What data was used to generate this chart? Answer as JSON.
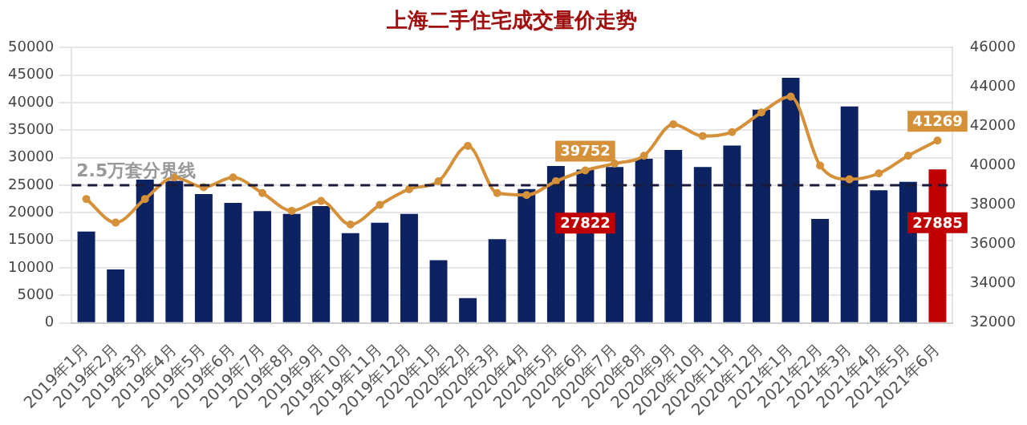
{
  "chart_data": {
    "type": "bar",
    "title": "上海二手住宅成交量价走势",
    "categories": [
      "2019年1月",
      "2019年2月",
      "2019年3月",
      "2019年4月",
      "2019年5月",
      "2019年6月",
      "2019年7月",
      "2019年8月",
      "2019年9月",
      "2019年10月",
      "2019年11月",
      "2019年12月",
      "2020年1月",
      "2020年2月",
      "2020年3月",
      "2020年4月",
      "2020年5月",
      "2020年6月",
      "2020年7月",
      "2020年8月",
      "2020年9月",
      "2020年10月",
      "2020年11月",
      "2020年12月",
      "2021年1月",
      "2021年2月",
      "2021年3月",
      "2021年4月",
      "2021年5月",
      "2021年6月"
    ],
    "series": [
      {
        "colors": [
          "#0d2260",
          "#0d2260",
          "#0d2260",
          "#0d2260",
          "#0d2260",
          "#0d2260",
          "#0d2260",
          "#0d2260",
          "#0d2260",
          "#0d2260",
          "#0d2260",
          "#0d2260",
          "#0d2260",
          "#0d2260",
          "#0d2260",
          "#0d2260",
          "#0d2260",
          "#0d2260",
          "#0d2260",
          "#0d2260",
          "#0d2260",
          "#0d2260",
          "#0d2260",
          "#0d2260",
          "#0d2260",
          "#0d2260",
          "#0d2260",
          "#0d2260",
          "#0d2260",
          "#c00000"
        ],
        "values": [
          16600,
          9700,
          26000,
          25800,
          23400,
          21800,
          20300,
          19800,
          21200,
          16300,
          18200,
          19800,
          11400,
          4500,
          15200,
          24300,
          28500,
          27822,
          28300,
          29800,
          31400,
          28300,
          32200,
          38700,
          44500,
          18900,
          39300,
          24100,
          25600,
          27885
        ],
        "value_labels": [
          null,
          null,
          null,
          null,
          null,
          null,
          null,
          null,
          null,
          null,
          null,
          null,
          null,
          null,
          null,
          null,
          null,
          "27822",
          null,
          null,
          null,
          null,
          null,
          null,
          null,
          null,
          null,
          null,
          null,
          "27885"
        ]
      },
      {
        "type": "line",
        "axis": "y2",
        "color": "#d4913a",
        "values": [
          38300,
          37100,
          38300,
          39400,
          38900,
          39400,
          38600,
          37700,
          38200,
          37000,
          38000,
          38800,
          39200,
          41000,
          38600,
          38500,
          39200,
          39752,
          40100,
          40500,
          42100,
          41500,
          41700,
          42700,
          43500,
          40000,
          39300,
          39600,
          40500,
          41269
        ],
        "value_labels": [
          null,
          null,
          null,
          null,
          null,
          null,
          null,
          null,
          null,
          null,
          null,
          null,
          null,
          null,
          null,
          null,
          null,
          "39752",
          null,
          null,
          null,
          null,
          null,
          null,
          null,
          null,
          null,
          null,
          null,
          "41269"
        ]
      }
    ],
    "ylim": [
      0,
      50000
    ],
    "yticks": [
      0,
      5000,
      10000,
      15000,
      20000,
      25000,
      30000,
      35000,
      40000,
      45000,
      50000
    ],
    "y2lim": [
      32000,
      46000
    ],
    "y2ticks": [
      32000,
      34000,
      36000,
      38000,
      40000,
      42000,
      44000,
      46000
    ],
    "ref_lines": [
      {
        "axis": "y",
        "value": 25000,
        "label": "2.5万套分界线",
        "color": "#1a1a3a",
        "line_style": "dashed"
      }
    ],
    "grid": "y",
    "marker": "circle",
    "line_style": "solid"
  }
}
